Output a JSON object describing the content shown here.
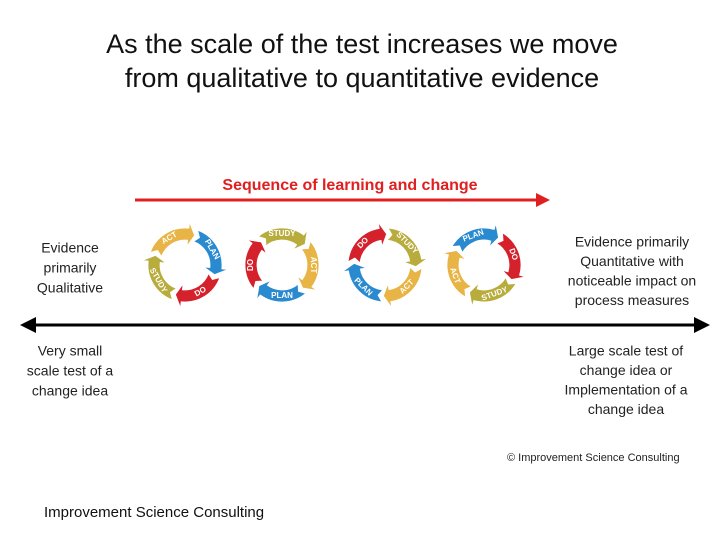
{
  "title_lines": [
    "As the scale of the test increases we move",
    "from qualitative to quantitative evidence"
  ],
  "sequence_label": "Sequence of learning and change",
  "cycle_labels": [
    "PLAN",
    "DO",
    "STUDY",
    "ACT"
  ],
  "left_top": [
    "Evidence",
    "primarily",
    "Qualitative"
  ],
  "right_top": [
    "Evidence primarily",
    "Quantitative with",
    "noticeable impact on",
    "process measures"
  ],
  "left_bottom": [
    "Very small",
    "scale test of a",
    "change idea"
  ],
  "right_bottom": [
    "Large scale test of",
    "change idea or",
    "Implementation of a",
    "change idea"
  ],
  "copyright": "© Improvement Science Consulting",
  "footer": "Improvement Science Consulting"
}
